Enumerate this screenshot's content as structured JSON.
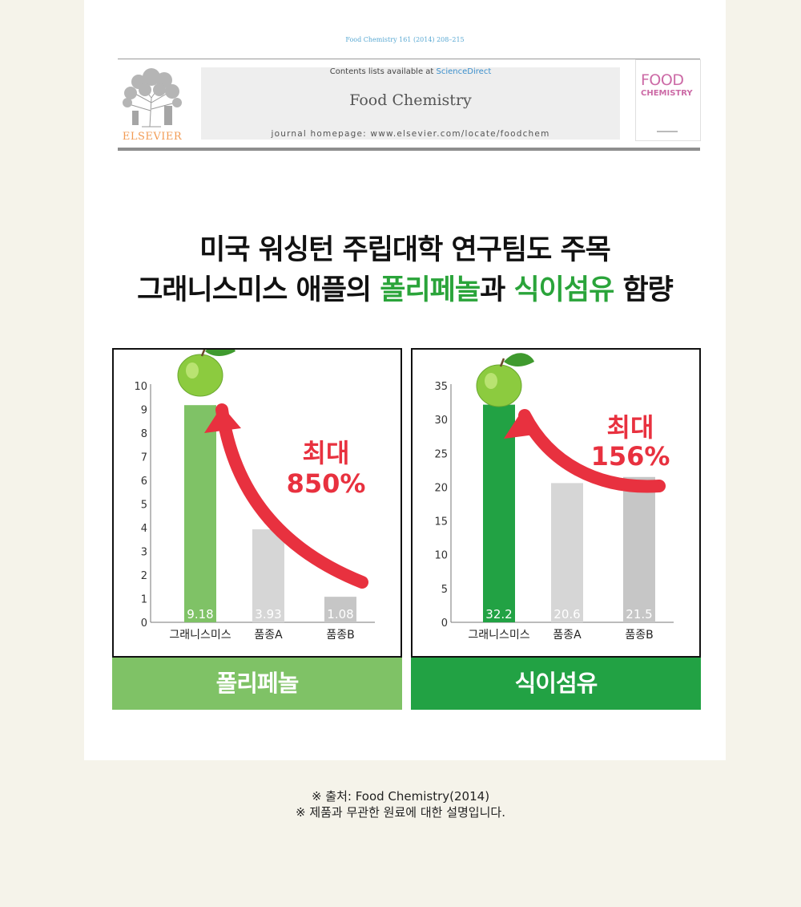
{
  "journal_header": {
    "citation": "Food Chemistry 161 (2014) 208–215",
    "contents_prefix": "Contents lists available at",
    "sciencedirect": "ScienceDirect",
    "journal_name": "Food Chemistry",
    "homepage": "journal homepage: www.elsevier.com/locate/foodchem",
    "publisher": "ELSEVIER",
    "cover_line1": "FOOD",
    "cover_line2": "CHEMISTRY"
  },
  "headline": {
    "line1": "미국 워싱턴 주립대학 연구팀도 주목",
    "line2_a": "그래니스미스 애플의 ",
    "line2_b": "폴리페놀",
    "line2_c": "과 ",
    "line2_d": "식이섬유",
    "line2_e": " 함량"
  },
  "colors": {
    "polyphenol_green": "#7fc266",
    "fiber_green": "#22a244",
    "gray_a": "#d6d6d6",
    "gray_b": "#c6c6c6",
    "arrow_red": "#e8313f"
  },
  "chart_data": [
    {
      "type": "bar",
      "categories": [
        "그래니스미스",
        "품종A",
        "품종B"
      ],
      "values": [
        9.18,
        3.93,
        1.08
      ],
      "value_labels": [
        "9.18",
        "3.93",
        "1.08"
      ],
      "yticks": [
        "0",
        "1",
        "2",
        "3",
        "4",
        "5",
        "6",
        "7",
        "8",
        "9",
        "10"
      ],
      "ylim": [
        0,
        10
      ],
      "annotation_line1": "최대",
      "annotation_line2": "850%",
      "footer": "폴리페놀"
    },
    {
      "type": "bar",
      "categories": [
        "그래니스미스",
        "품종A",
        "품종B"
      ],
      "values": [
        32.2,
        20.6,
        21.5
      ],
      "value_labels": [
        "32.2",
        "20.6",
        "21.5"
      ],
      "yticks": [
        "0",
        "5",
        "10",
        "15",
        "20",
        "25",
        "30",
        "35"
      ],
      "ylim": [
        0,
        35
      ],
      "annotation_line1": "최대",
      "annotation_line2": "156%",
      "footer": "식이섬유"
    }
  ],
  "notes": {
    "source": "※ 출처: Food Chemistry(2014)",
    "disclaimer": "※ 제품과 무관한 원료에 대한 설명입니다."
  }
}
